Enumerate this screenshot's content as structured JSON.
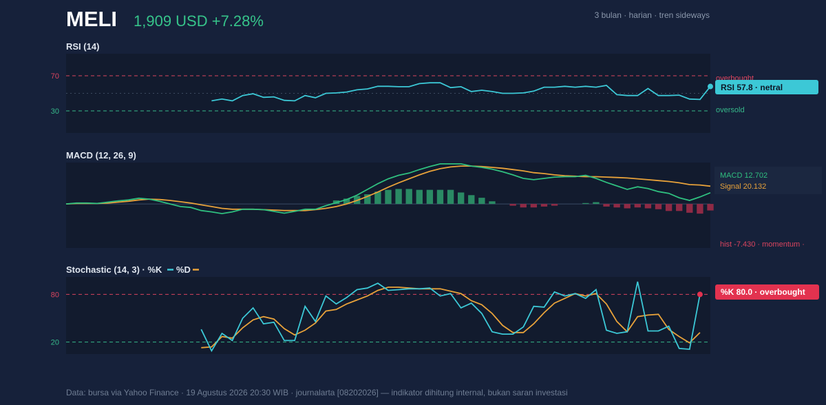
{
  "header": {
    "ticker": "MELI",
    "price_line": "1,909 USD +7.28%",
    "subtitle": "3 bulan · harian · tren sideways"
  },
  "colors": {
    "background": "#16213a",
    "panel": "#121b2e",
    "rsi_line": "#3cc8d6",
    "macd_line": "#2fbf7f",
    "signal_line": "#e8a23a",
    "hist_pos": "#2a8a64",
    "hist_neg": "#8f2a45",
    "overbought": "#d9445e",
    "oversold": "#36b88a",
    "k_line": "#3cc8d6",
    "d_line": "#e8a23a",
    "price_text": "#36c48a"
  },
  "footer": "Data: bursa via Yahoo Finance · 19 Agustus 2026 20:30 WIB · journalarta [08202026] — indikator dihitung internal, bukan saran investasi",
  "chart_data": [
    {
      "type": "line",
      "title": "RSI (14)",
      "ylim": [
        5,
        95
      ],
      "yticks": [
        70,
        30
      ],
      "levels": [
        {
          "value": 70,
          "label": "overbought"
        },
        {
          "value": 50,
          "label": ""
        },
        {
          "value": 30,
          "label": "oversold"
        }
      ],
      "n_points": 63,
      "start_index": 14,
      "series": [
        {
          "values": [
            41.5,
            43.5,
            41.5,
            47.5,
            49.5,
            45.5,
            46.0,
            42.0,
            41.5,
            47.5,
            45.0,
            50.0,
            50.5,
            51.5,
            54.0,
            55.0,
            58.0,
            58.0,
            57.5,
            57.5,
            61.0,
            62.0,
            62.0,
            56.5,
            57.5,
            52.0,
            53.5,
            52.0,
            50.0,
            50.0,
            50.5,
            52.5,
            57.0,
            57.0,
            58.0,
            57.0,
            58.0,
            57.0,
            59.0,
            48.5,
            47.5,
            47.5,
            55.5,
            47.5,
            47.5,
            48.0,
            43.5,
            43.0,
            57.8
          ]
        }
      ],
      "badge": "RSI 57.8 · netral"
    },
    {
      "type": "line",
      "title": "MACD (12, 26, 9)",
      "ylim": [
        -50,
        47
      ],
      "n_points": 63,
      "series": [
        {
          "name": "MACD",
          "values": [
            0.0,
            1.0,
            1.0,
            0.5,
            2.0,
            3.5,
            4.5,
            6.5,
            5.5,
            3.0,
            0.0,
            -3.0,
            -4.0,
            -7.5,
            -9.0,
            -11.0,
            -9.0,
            -6.0,
            -6.0,
            -6.5,
            -8.5,
            -10.5,
            -8.5,
            -6.0,
            -6.0,
            -2.0,
            1.5,
            5.0,
            10.0,
            16.5,
            23.0,
            28.5,
            32.5,
            35.0,
            39.0,
            42.5,
            45.5,
            45.5,
            45.5,
            43.0,
            41.5,
            39.5,
            36.5,
            33.0,
            29.0,
            27.5,
            29.0,
            30.5,
            31.0,
            31.0,
            32.5,
            29.0,
            24.5,
            20.5,
            16.5,
            19.5,
            17.5,
            14.0,
            12.0,
            7.0,
            4.0,
            8.0,
            12.702
          ]
        },
        {
          "name": "Signal",
          "values": [
            0.0,
            0.5,
            0.5,
            0.5,
            1.0,
            2.0,
            3.0,
            4.5,
            5.5,
            5.0,
            4.0,
            2.5,
            1.0,
            -1.0,
            -3.0,
            -5.0,
            -6.0,
            -6.0,
            -6.0,
            -6.5,
            -7.0,
            -7.5,
            -7.5,
            -7.5,
            -6.5,
            -5.0,
            -3.0,
            0.0,
            4.0,
            8.5,
            13.5,
            19.0,
            24.0,
            28.5,
            33.0,
            37.0,
            40.0,
            42.0,
            43.0,
            43.0,
            42.5,
            41.5,
            40.5,
            39.0,
            37.5,
            35.5,
            34.5,
            33.0,
            32.0,
            31.5,
            31.0,
            31.0,
            30.5,
            30.0,
            29.5,
            28.5,
            27.5,
            26.5,
            25.5,
            24.0,
            22.0,
            21.5,
            20.132
          ]
        },
        {
          "name": "hist",
          "values": [
            0,
            0,
            0,
            0,
            0,
            0,
            0,
            0,
            0,
            0,
            0,
            0,
            0,
            0,
            0,
            0,
            0,
            0,
            0,
            0,
            0,
            0,
            0,
            0,
            0,
            0,
            4,
            6,
            9,
            11,
            14,
            16,
            17,
            17,
            16,
            16,
            16,
            16,
            13,
            10,
            7,
            3,
            0,
            -2,
            -4,
            -4,
            -3,
            -2,
            0,
            0,
            1,
            2,
            -3,
            -4,
            -5,
            -4,
            -5,
            -6,
            -8,
            -8,
            -10,
            -11,
            -7.43
          ]
        }
      ],
      "legend": [
        "MACD 12.702",
        "Signal 20.132"
      ],
      "hist_label": "hist -7.430 · momentum ·"
    },
    {
      "type": "line",
      "title": "Stochastic (14, 3) · %K",
      "legend_d": "%D",
      "ylim": [
        5,
        102
      ],
      "yticks": [
        80,
        20
      ],
      "levels": [
        {
          "value": 80,
          "label": ""
        },
        {
          "value": 20,
          "label": ""
        }
      ],
      "n_points": 63,
      "start_index": 13,
      "series": [
        {
          "name": "%K",
          "values": [
            36,
            9,
            31,
            22,
            50,
            63,
            43,
            45,
            22,
            22,
            65,
            46,
            78,
            68,
            76,
            86,
            88,
            94,
            85,
            86,
            87,
            87,
            88,
            78,
            81,
            63,
            69,
            56,
            33,
            30,
            30,
            39,
            65,
            64,
            83,
            78,
            81,
            75,
            86,
            35,
            31,
            33,
            96,
            34,
            34,
            40,
            12,
            11,
            80
          ]
        },
        {
          "name": "%D",
          "values": [
            13,
            14,
            27,
            25,
            38,
            48,
            52,
            49,
            37,
            29,
            35,
            44,
            59,
            61,
            68,
            73,
            78,
            85,
            89,
            89,
            88,
            87,
            87,
            87,
            84,
            81,
            72,
            67,
            56,
            41,
            32,
            32,
            43,
            57,
            69,
            75,
            81,
            78,
            81,
            68,
            46,
            33,
            52,
            54,
            55,
            36,
            27,
            19,
            32
          ]
        }
      ],
      "badge": "%K 80.0 · overbought"
    }
  ]
}
